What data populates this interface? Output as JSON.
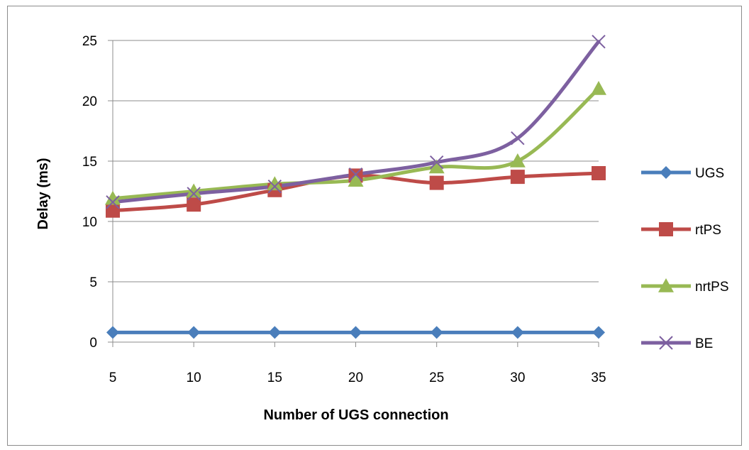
{
  "chart_data": {
    "type": "line",
    "title": "",
    "xlabel": "Number of UGS connection",
    "ylabel": "Delay (ms)",
    "x": [
      5,
      10,
      15,
      20,
      25,
      30,
      35
    ],
    "xticks": [
      "5",
      "10",
      "15",
      "20",
      "25",
      "30",
      "35"
    ],
    "yticks": [
      "0",
      "5",
      "10",
      "15",
      "20",
      "25"
    ],
    "ylim": [
      0,
      25
    ],
    "grid": "horizontal",
    "legend_position": "right",
    "smooth": true,
    "series": [
      {
        "name": "UGS",
        "color": "#4a7ebb",
        "marker": "diamond",
        "values": [
          0.8,
          0.8,
          0.8,
          0.8,
          0.8,
          0.8,
          0.8
        ]
      },
      {
        "name": "rtPS",
        "color": "#be4b48",
        "marker": "square",
        "values": [
          10.9,
          11.4,
          12.6,
          13.8,
          13.2,
          13.7,
          14.0
        ]
      },
      {
        "name": "nrtPS",
        "color": "#98b954",
        "marker": "triangle",
        "values": [
          11.9,
          12.5,
          13.1,
          13.4,
          14.5,
          15.0,
          21.0
        ]
      },
      {
        "name": "BE",
        "color": "#7d60a0",
        "marker": "x",
        "values": [
          11.6,
          12.3,
          12.9,
          13.9,
          14.9,
          16.9,
          24.9
        ]
      }
    ]
  }
}
